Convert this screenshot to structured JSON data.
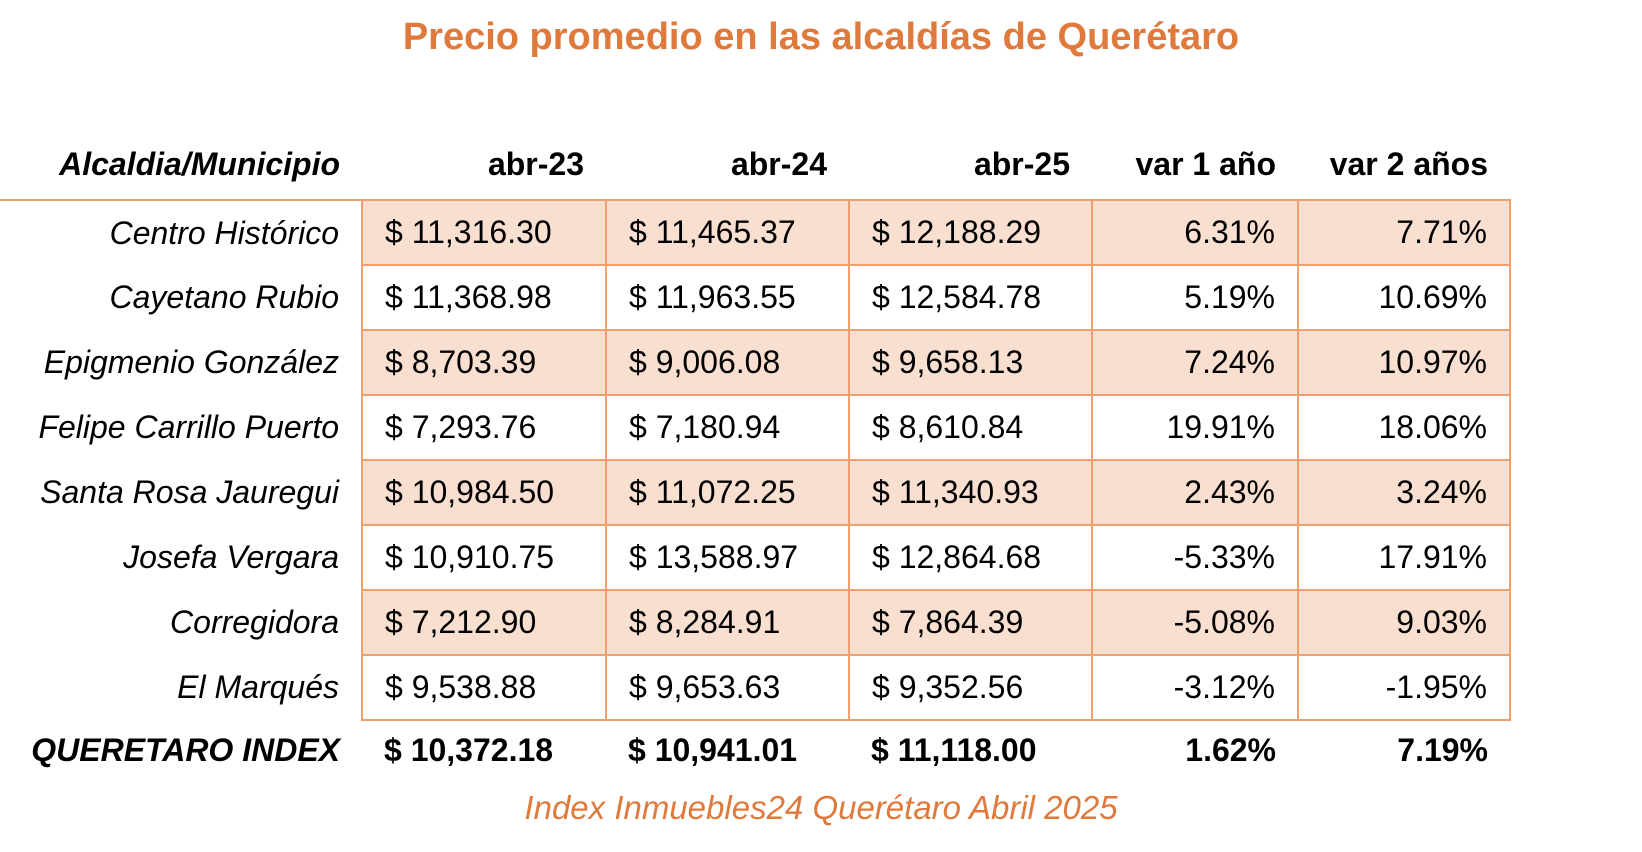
{
  "title": "Precio promedio en las alcaldías de Querétaro",
  "footer": "Index Inmuebles24 Querétaro Abril 2025",
  "chart_data": {
    "type": "table",
    "title": "Precio promedio en las alcaldías de Querétaro",
    "columns": [
      "Alcaldia/Municipio",
      "abr-23",
      "abr-24",
      "abr-25",
      "var 1 año",
      "var 2 años"
    ],
    "rows": [
      {
        "name": "Centro Histórico",
        "cells": [
          "$ 11,316.30",
          "$ 11,465.37",
          "$ 12,188.29",
          "6.31%",
          "7.71%"
        ]
      },
      {
        "name": "Cayetano Rubio",
        "cells": [
          "$ 11,368.98",
          "$ 11,963.55",
          "$ 12,584.78",
          "5.19%",
          "10.69%"
        ]
      },
      {
        "name": "Epigmenio González",
        "cells": [
          "$ 8,703.39",
          "$ 9,006.08",
          "$ 9,658.13",
          "7.24%",
          "10.97%"
        ]
      },
      {
        "name": "Felipe Carrillo Puerto",
        "cells": [
          "$ 7,293.76",
          "$ 7,180.94",
          "$ 8,610.84",
          "19.91%",
          "18.06%"
        ]
      },
      {
        "name": "Santa Rosa Jauregui",
        "cells": [
          "$ 10,984.50",
          "$ 11,072.25",
          "$ 11,340.93",
          "2.43%",
          "3.24%"
        ]
      },
      {
        "name": "Josefa Vergara",
        "cells": [
          "$ 10,910.75",
          "$ 13,588.97",
          "$ 12,864.68",
          "-5.33%",
          "17.91%"
        ]
      },
      {
        "name": "Corregidora",
        "cells": [
          "$ 7,212.90",
          "$ 8,284.91",
          "$ 7,864.39",
          "-5.08%",
          "9.03%"
        ]
      },
      {
        "name": "El Marqués",
        "cells": [
          "$ 9,538.88",
          "$ 9,653.63",
          "$ 9,352.56",
          "-3.12%",
          "-1.95%"
        ]
      }
    ],
    "total": {
      "name": "QUERETARO INDEX",
      "cells": [
        "$ 10,372.18",
        "$ 10,941.01",
        "$ 11,118.00",
        "1.62%",
        "7.19%"
      ]
    }
  },
  "colors": {
    "accent": "#e07a3c",
    "border": "#f0a070",
    "shade": "#f9dfd0"
  }
}
